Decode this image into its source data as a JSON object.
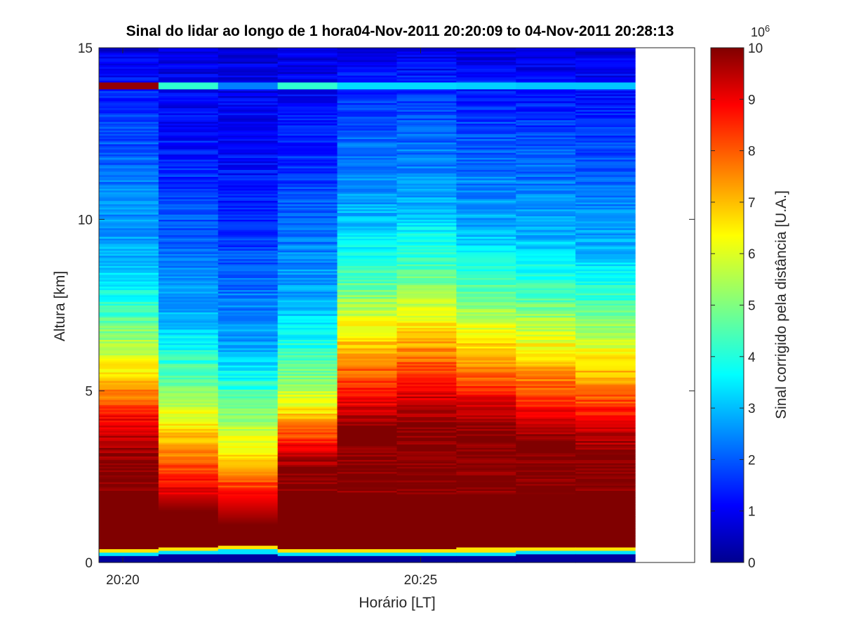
{
  "chart_data": {
    "type": "heatmap",
    "title": "Sinal do lidar ao longo de 1 hora04-Nov-2011 20:20:09 to 04-Nov-2011 20:28:13",
    "xlabel": "Horário [LT]",
    "ylabel": "Altura [km]",
    "colorbar_label": "Sinal corrigido pela distância [U.A.]",
    "colorbar_multiplier_base": "10",
    "colorbar_multiplier_exp": "6",
    "colormap": "jet",
    "xlim_minutes_after_20_00": [
      19.6,
      29.6
    ],
    "ylim": [
      0,
      15
    ],
    "clim": [
      0,
      10
    ],
    "x_ticks": [
      {
        "value": 20,
        "label": "20:20"
      },
      {
        "value": 25,
        "label": "20:25"
      }
    ],
    "y_ticks": [
      {
        "value": 0,
        "label": "0"
      },
      {
        "value": 5,
        "label": "5"
      },
      {
        "value": 10,
        "label": "10"
      },
      {
        "value": 15,
        "label": "15"
      }
    ],
    "colorbar_ticks": [
      "0",
      "1",
      "2",
      "3",
      "4",
      "5",
      "6",
      "7",
      "8",
      "9",
      "10"
    ],
    "grid": false,
    "profiles": [
      {
        "start": 19.6,
        "end": 20.6,
        "lowDark": 0.3,
        "sat": 2.9,
        "k1": 4.2,
        "k2": 5.5,
        "k3": 7.2,
        "k4": 9.0,
        "k5": 13.8,
        "cloud": 9.8
      },
      {
        "start": 20.6,
        "end": 21.6,
        "lowDark": 0.35,
        "sat": 1.5,
        "k1": 2.2,
        "k2": 3.9,
        "k3": 5.6,
        "k4": 7.2,
        "k5": 11.5,
        "cloud": 4.2
      },
      {
        "start": 21.6,
        "end": 22.6,
        "lowDark": 0.38,
        "sat": 1.1,
        "k1": 1.9,
        "k2": 3.2,
        "k3": 4.8,
        "k4": 6.2,
        "k5": 10.0,
        "cloud": 2.5
      },
      {
        "start": 22.6,
        "end": 23.6,
        "lowDark": 0.3,
        "sat": 2.7,
        "k1": 3.4,
        "k2": 4.4,
        "k3": 5.8,
        "k4": 7.6,
        "k5": 12.0,
        "cloud": 4.2
      },
      {
        "start": 23.6,
        "end": 24.6,
        "lowDark": 0.3,
        "sat": 3.9,
        "k1": 4.8,
        "k2": 6.6,
        "k3": 8.3,
        "k4": 10.2,
        "k5": 13.8,
        "cloud": 3.4
      },
      {
        "start": 24.6,
        "end": 25.6,
        "lowDark": 0.3,
        "sat": 3.9,
        "k1": 5.2,
        "k2": 6.8,
        "k3": 8.6,
        "k4": 10.5,
        "k5": 14.0,
        "cloud": 3.4
      },
      {
        "start": 25.6,
        "end": 26.6,
        "lowDark": 0.32,
        "sat": 3.8,
        "k1": 4.8,
        "k2": 6.4,
        "k3": 8.1,
        "k4": 9.8,
        "k5": 13.5,
        "cloud": 3.3
      },
      {
        "start": 26.6,
        "end": 27.6,
        "lowDark": 0.35,
        "sat": 3.4,
        "k1": 4.4,
        "k2": 6.1,
        "k3": 7.8,
        "k4": 9.6,
        "k5": 13.2,
        "cloud": 3.2
      },
      {
        "start": 27.6,
        "end": 28.6,
        "lowDark": 0.35,
        "sat": 3.1,
        "k1": 4.2,
        "k2": 5.8,
        "k3": 7.5,
        "k4": 9.2,
        "k5": 13.0,
        "cloud": 3.2
      }
    ],
    "cloud_layer_height_km": 13.9
  }
}
